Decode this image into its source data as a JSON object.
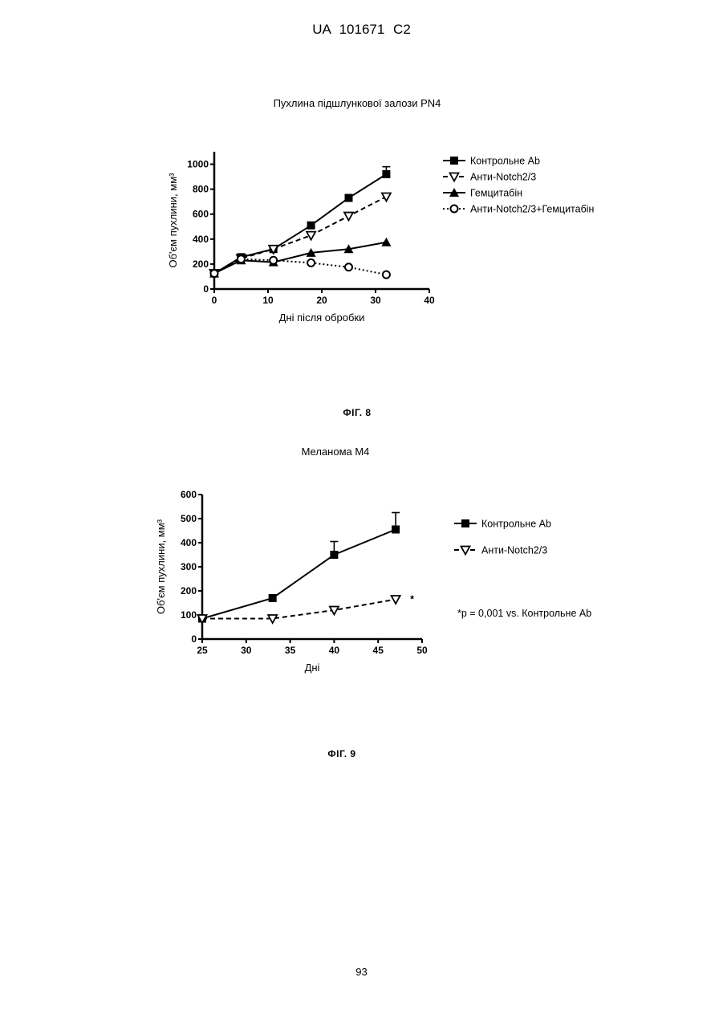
{
  "header": "UA   101671   C2",
  "page_number": "93",
  "chart_data": [
    {
      "type": "line",
      "title": "Пухлина підшлункової залози PN4",
      "xlabel": "Дні після обробки",
      "ylabel": "Об'єм пухлини, мм³",
      "xlim": [
        0,
        40
      ],
      "ylim": [
        0,
        1100
      ],
      "xticks": [
        0,
        10,
        20,
        30,
        40
      ],
      "yticks": [
        0,
        200,
        400,
        600,
        800,
        1000
      ],
      "legend_position": "top-right",
      "figure_label": "ФІГ. 8",
      "series": [
        {
          "name": "Контрольне Ab",
          "marker": "square",
          "line": "solid",
          "x": [
            0,
            5,
            11,
            18,
            25,
            32
          ],
          "y": [
            125,
            255,
            320,
            510,
            730,
            920
          ],
          "error": [
            0,
            0,
            0,
            0,
            0,
            60
          ]
        },
        {
          "name": "Анти-Notch2/3",
          "marker": "triangle-down-open",
          "line": "dashed",
          "x": [
            0,
            5,
            11,
            18,
            25,
            32
          ],
          "y": [
            125,
            245,
            320,
            430,
            585,
            740
          ],
          "error": [
            0,
            0,
            0,
            0,
            0,
            0
          ]
        },
        {
          "name": "Гемцитабін",
          "marker": "triangle-up",
          "line": "solid",
          "x": [
            0,
            5,
            11,
            18,
            25,
            32
          ],
          "y": [
            125,
            230,
            215,
            290,
            320,
            375
          ],
          "error": [
            0,
            0,
            0,
            0,
            0,
            0
          ]
        },
        {
          "name": "Анти-Notch2/3+Гемцитабін",
          "marker": "circle-open",
          "line": "dotted",
          "x": [
            0,
            5,
            11,
            18,
            25,
            32
          ],
          "y": [
            125,
            240,
            230,
            210,
            175,
            115
          ],
          "error": [
            0,
            0,
            0,
            0,
            0,
            0
          ]
        }
      ]
    },
    {
      "type": "line",
      "title": "Меланома М4",
      "xlabel": "Дні",
      "ylabel": "Об'єм пухлини, мм³",
      "xlim": [
        25,
        50
      ],
      "ylim": [
        0,
        600
      ],
      "xticks": [
        25,
        30,
        35,
        40,
        45,
        50
      ],
      "yticks": [
        0,
        100,
        200,
        300,
        400,
        500,
        600
      ],
      "legend_position": "right",
      "annotation": "*",
      "footnote": "*p = 0,001 vs. Контрольне Ab",
      "figure_label": "ФІГ. 9",
      "series": [
        {
          "name": "Контрольне Ab",
          "marker": "square",
          "line": "solid",
          "x": [
            25,
            33,
            40,
            47
          ],
          "y": [
            85,
            170,
            350,
            455
          ],
          "error": [
            0,
            0,
            55,
            70
          ]
        },
        {
          "name": "Анти-Notch2/3",
          "marker": "triangle-down-open",
          "line": "dashed",
          "x": [
            25,
            33,
            40,
            47
          ],
          "y": [
            85,
            85,
            120,
            165
          ],
          "error": [
            0,
            0,
            0,
            0
          ]
        }
      ]
    }
  ]
}
